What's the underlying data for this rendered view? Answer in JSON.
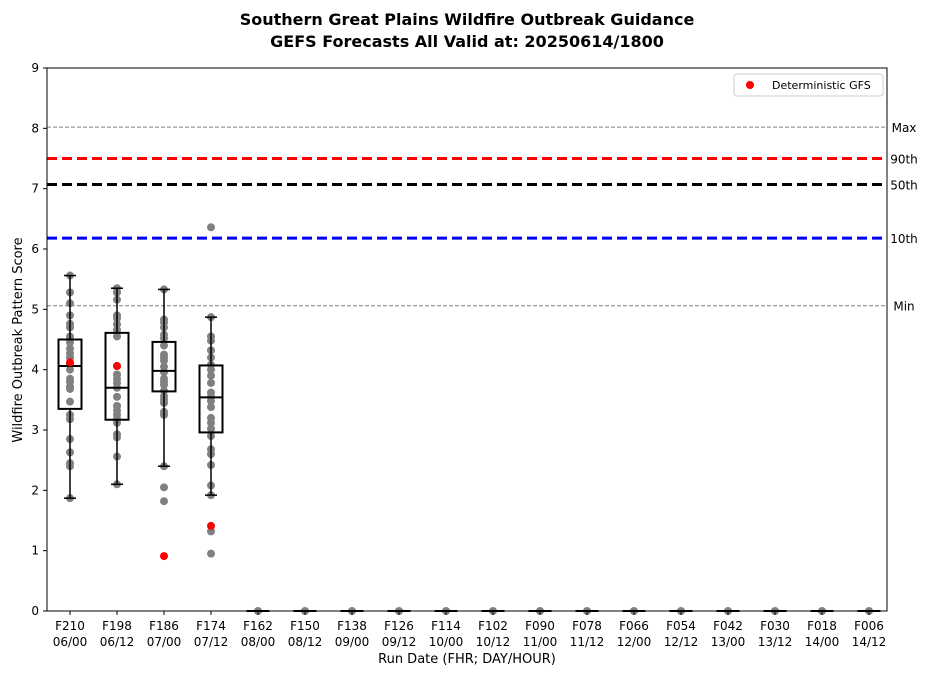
{
  "chart_data": {
    "type": "box",
    "title": "Southern Great Plains Wildfire Outbreak Guidance",
    "subtitle": "GEFS Forecasts All Valid at: 20250614/1800",
    "xlabel": "Run Date (FHR; DAY/HOUR)",
    "ylabel": "Wildfire Outbreak Pattern Score",
    "ylim": [
      0,
      9
    ],
    "yticks": [
      "0",
      "1",
      "2",
      "3",
      "4",
      "5",
      "6",
      "7",
      "8",
      "9"
    ],
    "grid": false,
    "legend": {
      "placement": "top-right",
      "entries": [
        {
          "label": "Deterministic GFS",
          "color": "#ff0000"
        }
      ]
    },
    "colors": {
      "member": "#808080",
      "deterministic": "#ff0000",
      "max_min_line": "#808080",
      "p90": "#ff0000",
      "p50": "#000000",
      "p10": "#0000ff"
    },
    "reference_lines": [
      {
        "label": "Max",
        "value": 8.02,
        "color": "#808080",
        "style": "dashed-thin"
      },
      {
        "label": "90th",
        "value": 7.5,
        "color": "#ff0000",
        "style": "dashed-thick"
      },
      {
        "label": "50th",
        "value": 7.07,
        "color": "#000000",
        "style": "dashed-thick"
      },
      {
        "label": "10th",
        "value": 6.18,
        "color": "#0000ff",
        "style": "dashed-thick"
      },
      {
        "label": "Min",
        "value": 5.06,
        "color": "#808080",
        "style": "dashed-thin"
      }
    ],
    "categories": [
      {
        "fhr": "F210",
        "date": "06/00"
      },
      {
        "fhr": "F198",
        "date": "06/12"
      },
      {
        "fhr": "F186",
        "date": "07/00"
      },
      {
        "fhr": "F174",
        "date": "07/12"
      },
      {
        "fhr": "F162",
        "date": "08/00"
      },
      {
        "fhr": "F150",
        "date": "08/12"
      },
      {
        "fhr": "F138",
        "date": "09/00"
      },
      {
        "fhr": "F126",
        "date": "09/12"
      },
      {
        "fhr": "F114",
        "date": "10/00"
      },
      {
        "fhr": "F102",
        "date": "10/12"
      },
      {
        "fhr": "F090",
        "date": "11/00"
      },
      {
        "fhr": "F078",
        "date": "11/12"
      },
      {
        "fhr": "F066",
        "date": "12/00"
      },
      {
        "fhr": "F054",
        "date": "12/12"
      },
      {
        "fhr": "F042",
        "date": "13/00"
      },
      {
        "fhr": "F030",
        "date": "13/12"
      },
      {
        "fhr": "F018",
        "date": "14/00"
      },
      {
        "fhr": "F006",
        "date": "14/12"
      }
    ],
    "boxes": [
      {
        "whisker_low": 1.87,
        "q1": 3.35,
        "median": 4.06,
        "q3": 4.5,
        "whisker_high": 5.56
      },
      {
        "whisker_low": 2.1,
        "q1": 3.17,
        "median": 3.7,
        "q3": 4.61,
        "whisker_high": 5.35
      },
      {
        "whisker_low": 2.4,
        "q1": 3.64,
        "median": 3.98,
        "q3": 4.46,
        "whisker_high": 5.33
      },
      {
        "whisker_low": 1.92,
        "q1": 2.96,
        "median": 3.54,
        "q3": 4.07,
        "whisker_high": 4.87
      },
      {
        "whisker_low": 0,
        "q1": 0,
        "median": 0,
        "q3": 0,
        "whisker_high": 0
      },
      {
        "whisker_low": 0,
        "q1": 0,
        "median": 0,
        "q3": 0,
        "whisker_high": 0
      },
      {
        "whisker_low": 0,
        "q1": 0,
        "median": 0,
        "q3": 0,
        "whisker_high": 0
      },
      {
        "whisker_low": 0,
        "q1": 0,
        "median": 0,
        "q3": 0,
        "whisker_high": 0
      },
      {
        "whisker_low": 0,
        "q1": 0,
        "median": 0,
        "q3": 0,
        "whisker_high": 0
      },
      {
        "whisker_low": 0,
        "q1": 0,
        "median": 0,
        "q3": 0,
        "whisker_high": 0
      },
      {
        "whisker_low": 0,
        "q1": 0,
        "median": 0,
        "q3": 0,
        "whisker_high": 0
      },
      {
        "whisker_low": 0,
        "q1": 0,
        "median": 0,
        "q3": 0,
        "whisker_high": 0
      },
      {
        "whisker_low": 0,
        "q1": 0,
        "median": 0,
        "q3": 0,
        "whisker_high": 0
      },
      {
        "whisker_low": 0,
        "q1": 0,
        "median": 0,
        "q3": 0,
        "whisker_high": 0
      },
      {
        "whisker_low": 0,
        "q1": 0,
        "median": 0,
        "q3": 0,
        "whisker_high": 0
      },
      {
        "whisker_low": 0,
        "q1": 0,
        "median": 0,
        "q3": 0,
        "whisker_high": 0
      },
      {
        "whisker_low": 0,
        "q1": 0,
        "median": 0,
        "q3": 0,
        "whisker_high": 0
      },
      {
        "whisker_low": 0,
        "q1": 0,
        "median": 0,
        "q3": 0,
        "whisker_high": 0
      }
    ],
    "members": [
      [
        5.56,
        5.28,
        5.1,
        4.9,
        4.76,
        4.7,
        4.55,
        4.45,
        4.35,
        4.27,
        4.2,
        4.1,
        4.0,
        3.85,
        3.8,
        3.72,
        3.68,
        3.47,
        3.25,
        3.18,
        2.85,
        2.63,
        2.45,
        2.4,
        1.87
      ],
      [
        5.35,
        5.28,
        5.16,
        4.9,
        4.85,
        4.75,
        4.66,
        4.55,
        4.06,
        3.92,
        3.85,
        3.78,
        3.7,
        3.55,
        3.4,
        3.32,
        3.25,
        3.18,
        3.12,
        2.93,
        2.88,
        2.56,
        2.1
      ],
      [
        5.33,
        4.83,
        4.78,
        4.7,
        4.58,
        4.52,
        4.4,
        4.25,
        4.2,
        4.15,
        4.05,
        3.96,
        3.85,
        3.8,
        3.75,
        3.65,
        3.56,
        3.5,
        3.45,
        3.3,
        3.25,
        2.4,
        2.05,
        1.82
      ],
      [
        6.36,
        4.87,
        4.55,
        4.48,
        4.32,
        4.2,
        4.08,
        4.0,
        3.9,
        3.78,
        3.62,
        3.55,
        3.48,
        3.38,
        3.2,
        3.12,
        3.02,
        2.9,
        2.68,
        2.6,
        2.42,
        2.08,
        1.92,
        1.32,
        0.95
      ],
      [
        0
      ],
      [
        0
      ],
      [
        0
      ],
      [
        0
      ],
      [
        0
      ],
      [
        0
      ],
      [
        0
      ],
      [
        0
      ],
      [
        0
      ],
      [
        0
      ],
      [
        0
      ],
      [
        0
      ],
      [
        0
      ],
      [
        0
      ]
    ],
    "deterministic": [
      4.12,
      4.06,
      0.91,
      1.41,
      null,
      null,
      null,
      null,
      null,
      null,
      null,
      null,
      null,
      null,
      null,
      null,
      null,
      null
    ]
  }
}
